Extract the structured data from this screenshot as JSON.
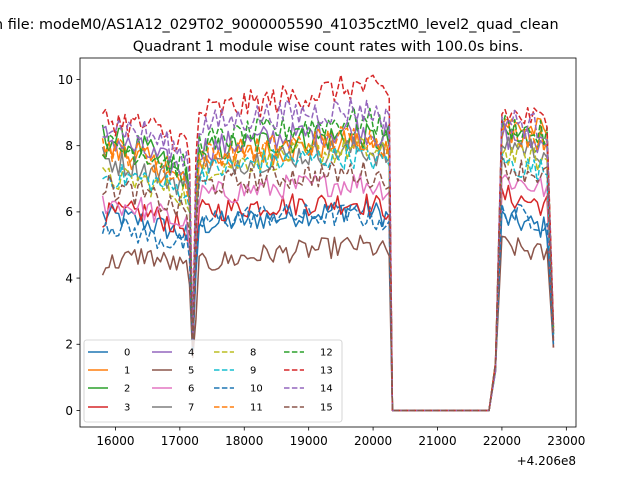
{
  "figure": {
    "suptitle": "n file: modeM0/AS1A12_029T02_9000005590_41035cztM0_level2_quad_clean"
  },
  "chart_data": {
    "type": "line",
    "title": "Quadrant 1 module wise count rates with 100.0s bins.",
    "xlabel": "",
    "ylabel": "",
    "x_offset_label": "+4.206e8",
    "xlim": [
      15450,
      23150
    ],
    "ylim": [
      -0.5,
      10.65
    ],
    "x_ticks": [
      16000,
      17000,
      18000,
      19000,
      20000,
      21000,
      22000,
      23000
    ],
    "x_tick_labels": [
      "16000",
      "17000",
      "18000",
      "19000",
      "20000",
      "21000",
      "22000",
      "23000"
    ],
    "y_ticks": [
      0,
      2,
      4,
      6,
      8,
      10
    ],
    "y_tick_labels": [
      "0",
      "2",
      "4",
      "6",
      "8",
      "10"
    ],
    "grid": false,
    "legend": {
      "placement": "lower-left",
      "columns": 4
    },
    "segments": [
      {
        "start": 15800,
        "end": 17100
      },
      {
        "start": 17300,
        "end": 20200
      },
      {
        "start": 22000,
        "end": 22700
      }
    ],
    "x_points": {
      "dip_left": 17150,
      "dip": 17200,
      "dip_right": 17250,
      "drop_start": 20250,
      "gap_start": 20300,
      "gap_end": 21800,
      "rise": 21900,
      "end_fall": 22800
    },
    "series": [
      {
        "name": "0",
        "color": "#1f77b4",
        "dashed": false,
        "base": [
          5.9,
          5.7,
          5.3,
          5.6,
          5.8,
          6.1,
          5.8
        ],
        "dip": 1.9,
        "end": 2.2
      },
      {
        "name": "1",
        "color": "#ff7f0e",
        "dashed": false,
        "base": [
          7.9,
          7.6,
          6.8,
          7.5,
          7.8,
          8.1,
          8.7
        ],
        "dip": 2.0,
        "end": 2.4
      },
      {
        "name": "2",
        "color": "#2ca02c",
        "dashed": false,
        "base": [
          8.3,
          7.9,
          7.0,
          7.8,
          8.1,
          8.3,
          8.4
        ],
        "dip": 2.1,
        "end": 2.5
      },
      {
        "name": "3",
        "color": "#d62728",
        "dashed": false,
        "base": [
          5.9,
          6.0,
          5.5,
          6.0,
          6.2,
          6.3,
          6.5
        ],
        "dip": 1.8,
        "end": 1.9
      },
      {
        "name": "4",
        "color": "#9467bd",
        "dashed": false,
        "base": [
          8.3,
          7.8,
          7.2,
          7.9,
          8.2,
          8.5,
          8.3
        ],
        "dip": 2.0,
        "end": 2.3
      },
      {
        "name": "5",
        "color": "#8c564b",
        "dashed": false,
        "base": [
          4.4,
          4.7,
          4.3,
          4.4,
          4.7,
          5.0,
          5.0
        ],
        "dip": 1.6,
        "end": 1.9
      },
      {
        "name": "6",
        "color": "#e377c2",
        "dashed": false,
        "base": [
          6.3,
          6.1,
          5.6,
          6.5,
          6.7,
          6.9,
          7.0
        ],
        "dip": 1.9,
        "end": 2.1
      },
      {
        "name": "7",
        "color": "#7f7f7f",
        "dashed": false,
        "base": [
          7.6,
          7.3,
          6.8,
          7.4,
          7.6,
          7.9,
          8.1
        ],
        "dip": 2.0,
        "end": 2.3
      },
      {
        "name": "8",
        "color": "#bcbd22",
        "dashed": true,
        "base": [
          7.0,
          6.9,
          6.5,
          7.3,
          7.6,
          7.9,
          7.8
        ],
        "dip": 2.0,
        "end": 2.3
      },
      {
        "name": "9",
        "color": "#17becf",
        "dashed": true,
        "base": [
          7.1,
          7.0,
          6.6,
          7.2,
          7.5,
          7.7,
          7.5
        ],
        "dip": 2.0,
        "end": 2.3
      },
      {
        "name": "10",
        "color": "#1f77b4",
        "dashed": true,
        "base": [
          5.7,
          5.3,
          5.0,
          5.7,
          5.9,
          5.9,
          6.0
        ],
        "dip": 1.8,
        "end": 2.0
      },
      {
        "name": "11",
        "color": "#ff7f0e",
        "dashed": true,
        "base": [
          8.0,
          7.7,
          7.0,
          7.7,
          7.9,
          8.3,
          8.5
        ],
        "dip": 2.1,
        "end": 2.5
      },
      {
        "name": "12",
        "color": "#2ca02c",
        "dashed": true,
        "base": [
          8.0,
          7.8,
          7.3,
          8.1,
          8.4,
          8.8,
          8.6
        ],
        "dip": 2.0,
        "end": 2.4
      },
      {
        "name": "13",
        "color": "#d62728",
        "dashed": true,
        "base": [
          8.8,
          8.6,
          8.1,
          9.0,
          9.3,
          9.8,
          9.0
        ],
        "dip": 2.2,
        "end": 2.6
      },
      {
        "name": "14",
        "color": "#9467bd",
        "dashed": true,
        "base": [
          8.7,
          8.4,
          7.7,
          8.6,
          8.9,
          9.1,
          8.8
        ],
        "dip": 2.1,
        "end": 2.4
      },
      {
        "name": "15",
        "color": "#8c564b",
        "dashed": true,
        "base": [
          6.8,
          6.5,
          6.0,
          6.8,
          7.0,
          7.2,
          7.4
        ],
        "dip": 1.9,
        "end": 2.1
      }
    ]
  }
}
